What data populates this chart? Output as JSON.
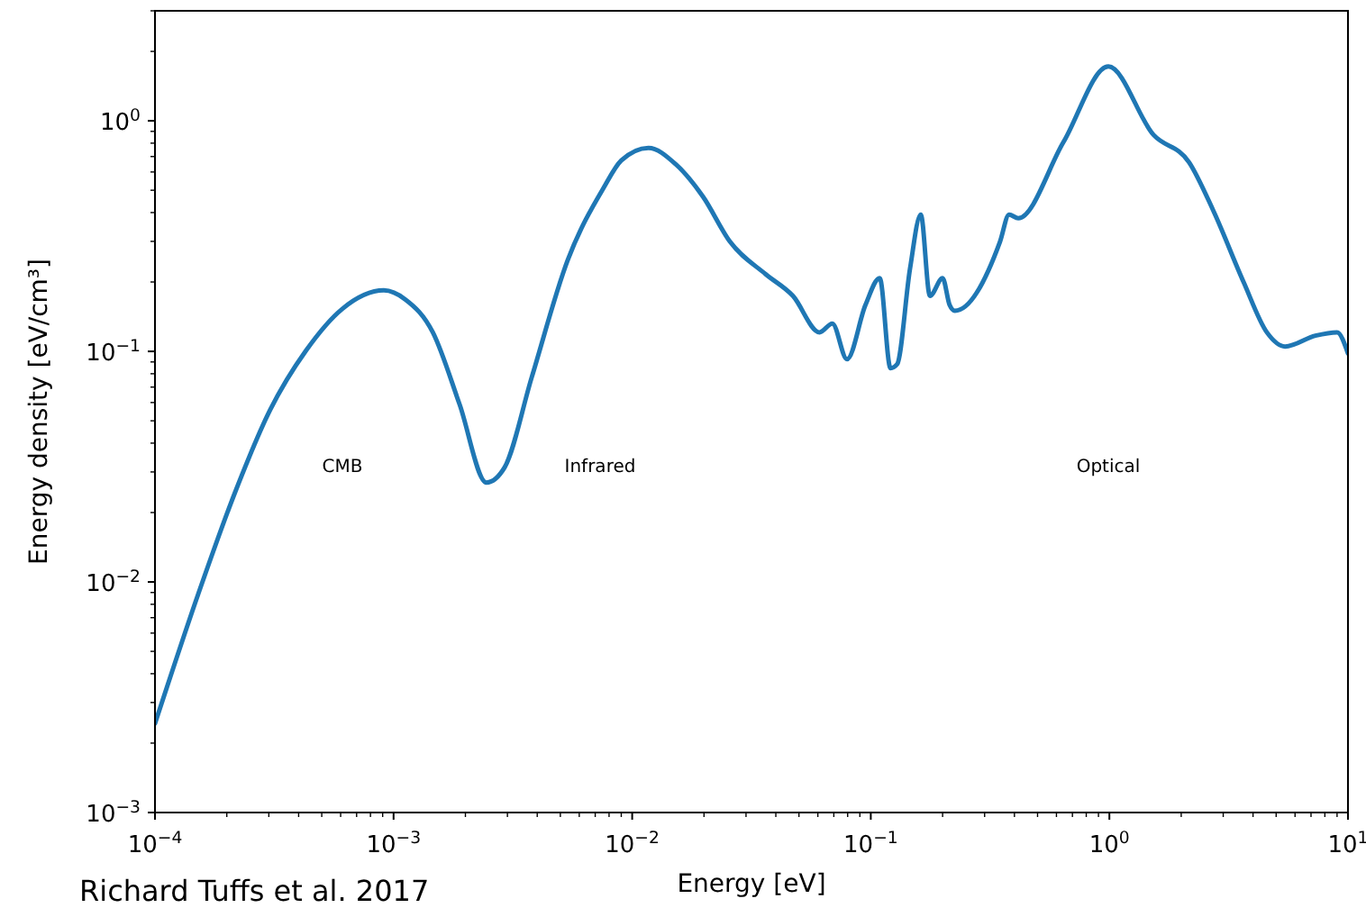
{
  "chart_data": {
    "type": "line",
    "xlabel": "Energy [eV]",
    "ylabel": "Energy density [eV/cm³]",
    "log": "xy",
    "xlim": [
      0.0001,
      10
    ],
    "ylim": [
      0.001,
      3
    ],
    "xticks": [
      {
        "value": 0.0001,
        "label": "10$^{−4}$"
      },
      {
        "value": 0.001,
        "label": "10$^{−3}$"
      },
      {
        "value": 0.01,
        "label": "10$^{−2}$"
      },
      {
        "value": 0.1,
        "label": "10$^{−1}$"
      },
      {
        "value": 1,
        "label": "10$^{0}$"
      },
      {
        "value": 10,
        "label": "10$^{1}$"
      }
    ],
    "yticks": [
      {
        "value": 0.001,
        "label": "10$^{−3}$"
      },
      {
        "value": 0.01,
        "label": "10$^{−2}$"
      },
      {
        "value": 0.1,
        "label": "10$^{−1}$"
      },
      {
        "value": 1,
        "label": "10$^{0}$"
      }
    ],
    "grid": false,
    "series": [
      {
        "color": "#1f77b4",
        "x": [
          0.0001,
          0.000152,
          0.000215,
          0.000304,
          0.00043,
          0.00061,
          0.00091,
          0.00112,
          0.00146,
          0.00189,
          0.00245,
          0.00292,
          0.00379,
          0.00537,
          0.0076,
          0.009,
          0.0117,
          0.0152,
          0.0198,
          0.0257,
          0.0363,
          0.0472,
          0.061,
          0.069,
          0.0795,
          0.095,
          0.109,
          0.121,
          0.129,
          0.146,
          0.162,
          0.177,
          0.2,
          0.214,
          0.225,
          0.348,
          0.38,
          0.415,
          0.641,
          0.99,
          1.53,
          2.16,
          2.72,
          3.65,
          4.57,
          5.45,
          7.3,
          9.0,
          10
        ],
        "values": [
          0.00243,
          0.0089,
          0.024,
          0.0558,
          0.101,
          0.153,
          0.184,
          0.168,
          0.121,
          0.059,
          0.027,
          0.0314,
          0.077,
          0.249,
          0.513,
          0.673,
          0.763,
          0.649,
          0.469,
          0.299,
          0.216,
          0.174,
          0.121,
          0.132,
          0.0925,
          0.159,
          0.208,
          0.0845,
          0.088,
          0.228,
          0.392,
          0.174,
          0.208,
          0.159,
          0.15,
          0.299,
          0.392,
          0.378,
          0.806,
          1.72,
          0.87,
          0.66,
          0.41,
          0.2,
          0.121,
          0.105,
          0.117,
          0.121,
          0.098
        ]
      }
    ],
    "annotations": [
      "CMB",
      "Infrared",
      "Optical",
      "Richard Tuffs et al. 2017"
    ]
  }
}
